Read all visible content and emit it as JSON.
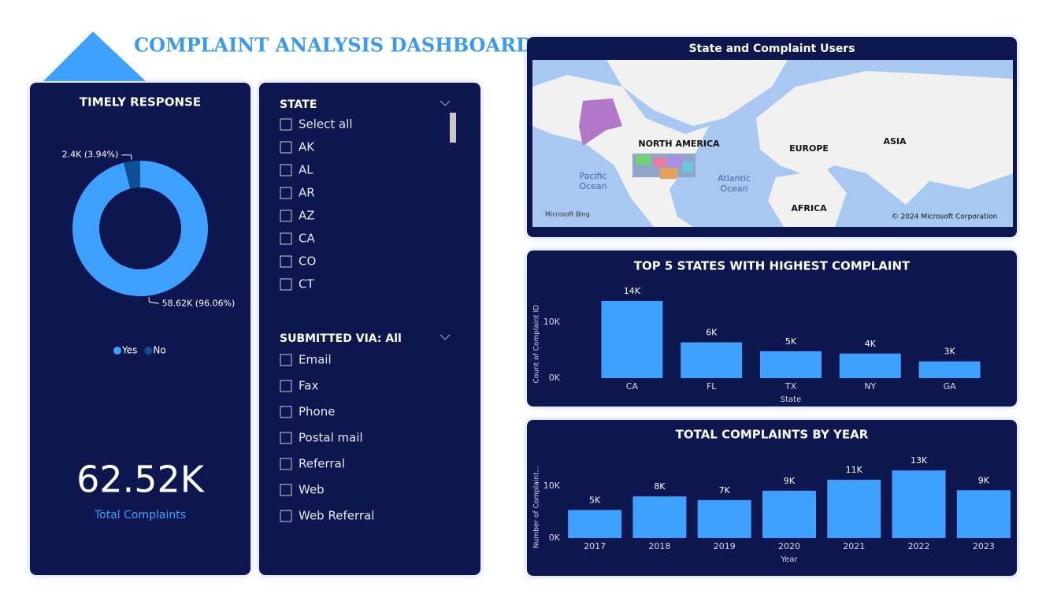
{
  "title": "COMPLAINT ANALYSIS DASHBOARD",
  "chart_data": [
    {
      "type": "pie",
      "donut": true,
      "title": "TIMELY RESPONSE",
      "categories": [
        "Yes",
        "No"
      ],
      "values": [
        58620,
        2400
      ],
      "value_labels": [
        "58.62K (96.06%)",
        "2.4K (3.94%)"
      ],
      "colors": [
        "#3ea0ff",
        "#0f4f98"
      ]
    },
    {
      "type": "bar",
      "title": "TOP 5 STATES WITH HIGHEST COMPLAINT",
      "categories": [
        "CA",
        "FL",
        "TX",
        "NY",
        "GA"
      ],
      "values": [
        13800,
        6400,
        4800,
        4400,
        3000
      ],
      "value_labels": [
        "14K",
        "6K",
        "5K",
        "4K",
        "3K"
      ],
      "color": "#3ea0ff",
      "x_label": "State",
      "y_label": "Count of Complaint ID",
      "ylim": [
        0,
        15000
      ],
      "yticks": [
        {
          "value": 0,
          "label": "0K"
        },
        {
          "value": 10000,
          "label": "10K"
        }
      ]
    },
    {
      "type": "bar",
      "title": "TOTAL COMPLAINTS BY YEAR",
      "categories": [
        "2017",
        "2018",
        "2019",
        "2020",
        "2021",
        "2022",
        "2023"
      ],
      "values": [
        5400,
        8000,
        7300,
        9100,
        11200,
        13000,
        9200
      ],
      "value_labels": [
        "5K",
        "8K",
        "7K",
        "9K",
        "11K",
        "13K",
        "9K"
      ],
      "color": "#3ea0ff",
      "x_label": "Year",
      "y_label": "Number of Complaint...",
      "ylim": [
        0,
        15000
      ],
      "yticks": [
        {
          "value": 0,
          "label": "0K"
        },
        {
          "value": 10000,
          "label": "10K"
        }
      ]
    }
  ],
  "kpi": {
    "value": "62.52K",
    "label": "Total Complaints"
  },
  "slicers": [
    {
      "title": "STATE",
      "items": [
        "Select all",
        "AK",
        "AL",
        "AR",
        "AZ",
        "CA",
        "CO",
        "CT"
      ]
    },
    {
      "title": "SUBMITTED VIA: All",
      "items": [
        "Email",
        "Fax",
        "Phone",
        "Postal mail",
        "Referral",
        "Web",
        "Web Referral"
      ]
    }
  ],
  "map": {
    "title": "State and Complaint Users",
    "labels": [
      "NORTH AMERICA",
      "EUROPE",
      "ASIA",
      "AFRICA"
    ],
    "oceans": [
      [
        "Pacific",
        "Ocean"
      ],
      [
        "Atlantic",
        "Ocean"
      ]
    ],
    "provider": "Microsoft Bing",
    "copyright": "© 2024 Microsoft Corporation"
  }
}
